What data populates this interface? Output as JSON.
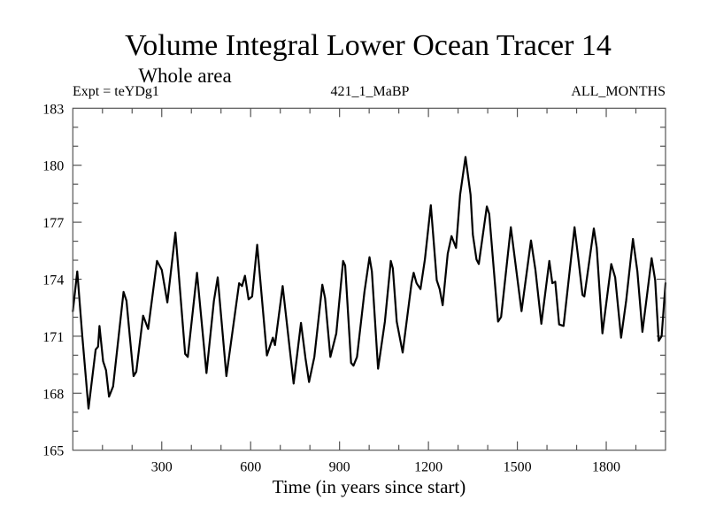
{
  "chart_data": {
    "type": "line",
    "title": "Volume Integral Lower Ocean Tracer 14",
    "subtitle": "Whole area",
    "annotations": {
      "left": "Expt = teYDg1",
      "center": "421_1_MaBP",
      "right": "ALL_MONTHS"
    },
    "xlabel": "Time (in years since start)",
    "ylabel": "",
    "xlim": [
      0,
      2000
    ],
    "ylim": [
      165,
      183
    ],
    "xticks": [
      300,
      600,
      900,
      1200,
      1500,
      1800
    ],
    "xtick_labels": [
      "300",
      "600",
      "900",
      "1200",
      "1500",
      "1800"
    ],
    "x_minor_step": 100,
    "yticks": [
      165,
      168,
      171,
      174,
      177,
      180,
      183
    ],
    "ytick_labels": [
      "165",
      "168",
      "171",
      "174",
      "177",
      "180",
      "183"
    ],
    "y_minor_step": 1,
    "grid": false,
    "legend": "none",
    "series": [
      {
        "name": "Volume Integral Lower Ocean Tracer 14",
        "color": "#000000",
        "x": [
          0,
          15,
          32,
          53,
          77,
          85,
          90,
          102,
          112,
          122,
          136,
          171,
          181,
          205,
          214,
          237,
          254,
          284,
          300,
          319,
          346,
          379,
          388,
          419,
          451,
          476,
          489,
          518,
          561,
          571,
          581,
          593,
          605,
          622,
          655,
          675,
          682,
          708,
          745,
          770,
          785,
          797,
          815,
          842,
          851,
          869,
          889,
          912,
          919,
          939,
          947,
          959,
          984,
          1001,
          1009,
          1030,
          1053,
          1073,
          1080,
          1093,
          1113,
          1143,
          1150,
          1160,
          1173,
          1188,
          1208,
          1228,
          1238,
          1248,
          1265,
          1278,
          1293,
          1307,
          1325,
          1342,
          1350,
          1362,
          1370,
          1397,
          1405,
          1435,
          1445,
          1478,
          1514,
          1546,
          1561,
          1581,
          1608,
          1618,
          1628,
          1641,
          1656,
          1693,
          1706,
          1720,
          1726,
          1758,
          1768,
          1787,
          1817,
          1830,
          1850,
          1867,
          1890,
          1905,
          1922,
          1953,
          1965,
          1977,
          1987,
          2000
        ],
        "y": [
          172.32,
          174.41,
          171.0,
          167.19,
          170.3,
          170.45,
          171.54,
          169.68,
          169.21,
          167.82,
          168.36,
          173.33,
          172.87,
          168.9,
          169.13,
          172.08,
          171.38,
          174.96,
          174.49,
          172.78,
          176.46,
          170.07,
          169.91,
          174.34,
          169.06,
          172.86,
          174.1,
          168.9,
          173.79,
          173.64,
          174.18,
          172.94,
          173.09,
          175.81,
          169.99,
          170.92,
          170.53,
          173.64,
          168.51,
          171.7,
          169.83,
          168.59,
          169.91,
          173.71,
          173.01,
          169.91,
          171.15,
          174.96,
          174.72,
          169.6,
          169.45,
          169.91,
          173.33,
          175.16,
          174.41,
          169.29,
          171.77,
          174.96,
          174.57,
          171.77,
          170.14,
          173.79,
          174.34,
          173.79,
          173.48,
          175.04,
          177.9,
          173.95,
          173.48,
          172.63,
          175.34,
          176.27,
          175.65,
          178.45,
          180.44,
          178.45,
          176.35,
          175.04,
          174.8,
          177.83,
          177.44,
          171.77,
          172.01,
          176.74,
          172.32,
          176.04,
          174.49,
          171.65,
          174.96,
          173.79,
          173.87,
          171.62,
          171.54,
          176.74,
          175.04,
          173.17,
          173.09,
          176.67,
          175.65,
          171.15,
          174.8,
          174.1,
          170.92,
          172.86,
          176.12,
          174.41,
          171.23,
          175.11,
          173.95,
          170.76,
          171.0,
          173.79
        ]
      }
    ]
  }
}
